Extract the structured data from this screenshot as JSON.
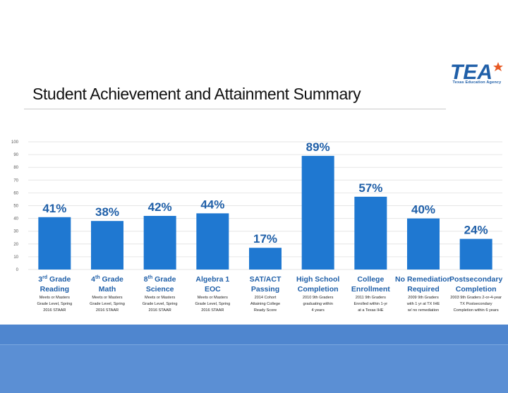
{
  "header": {
    "title": "Student Achievement and Attainment Summary",
    "logo_text": "TEA",
    "logo_subtitle": "Texas Education Agency"
  },
  "colors": {
    "bar": "#1f78d1",
    "pct_label": "#1f5fa8",
    "category_label": "#1f5fa8",
    "note": "#222222",
    "grid": "#e6e6e6",
    "axis_tick": "#555555",
    "footer": "#5b8fd4"
  },
  "chart_data": {
    "type": "bar",
    "title": "",
    "xlabel": "",
    "ylabel": "",
    "ylim": [
      0,
      100
    ],
    "yticks": [
      0,
      10,
      20,
      30,
      40,
      50,
      60,
      70,
      80,
      90,
      100
    ],
    "grid": true,
    "categories": [
      "3rd Grade Reading",
      "4th Grade Math",
      "8th Grade Science",
      "Algebra 1 EOC",
      "SAT/ACT Passing",
      "High School Completion",
      "College Enrollment",
      "No Remediation Required",
      "Postsecondary Completion"
    ],
    "values": [
      41,
      38,
      42,
      44,
      17,
      89,
      57,
      40,
      24
    ],
    "data_labels": [
      "41%",
      "38%",
      "42%",
      "44%",
      "17%",
      "89%",
      "57%",
      "40%",
      "24%"
    ],
    "category_labels": [
      {
        "line1": "3",
        "sup": "rd",
        "line1_rest": " Grade",
        "line2": "Reading"
      },
      {
        "line1": "4",
        "sup": "th",
        "line1_rest": " Grade",
        "line2": "Math"
      },
      {
        "line1": "8",
        "sup": "th",
        "line1_rest": " Grade",
        "line2": "Science"
      },
      {
        "line1": "Algebra 1",
        "sup": "",
        "line1_rest": "",
        "line2": "EOC"
      },
      {
        "line1": "SAT/ACT",
        "sup": "",
        "line1_rest": "",
        "line2": "Passing"
      },
      {
        "line1": "High School",
        "sup": "",
        "line1_rest": "",
        "line2": "Completion"
      },
      {
        "line1": "College",
        "sup": "",
        "line1_rest": "",
        "line2": "Enrollment"
      },
      {
        "line1": "No Remediation",
        "sup": "",
        "line1_rest": "",
        "line2": "Required"
      },
      {
        "line1": "Postsecondary",
        "sup": "",
        "line1_rest": "",
        "line2": "Completion"
      }
    ],
    "notes": [
      [
        "Meets or Masters",
        "Grade Level, Spring",
        "2016 STAAR"
      ],
      [
        "Meets or Masters",
        "Grade Level, Spring",
        "2016 STAAR"
      ],
      [
        "Meets or Masters",
        "Grade Level, Spring",
        "2016 STAAR"
      ],
      [
        "Meets or Masters",
        "Grade Level, Spring",
        "2016 STAAR"
      ],
      [
        "2014 Cohort",
        "Attaining College",
        "Ready Score"
      ],
      [
        "2010 9th Graders",
        "graduating within",
        "4 years"
      ],
      [
        "2011 9th Graders",
        "Enrolled within 1-yr",
        "at a Texas IHE"
      ],
      [
        "2009 9th Graders",
        "with 1 yr at TX IHE",
        "w/ no remediation"
      ],
      [
        "2003 9th Graders 2-or-4-year",
        "TX Postsecondary",
        "Completion within 6 years"
      ]
    ]
  }
}
